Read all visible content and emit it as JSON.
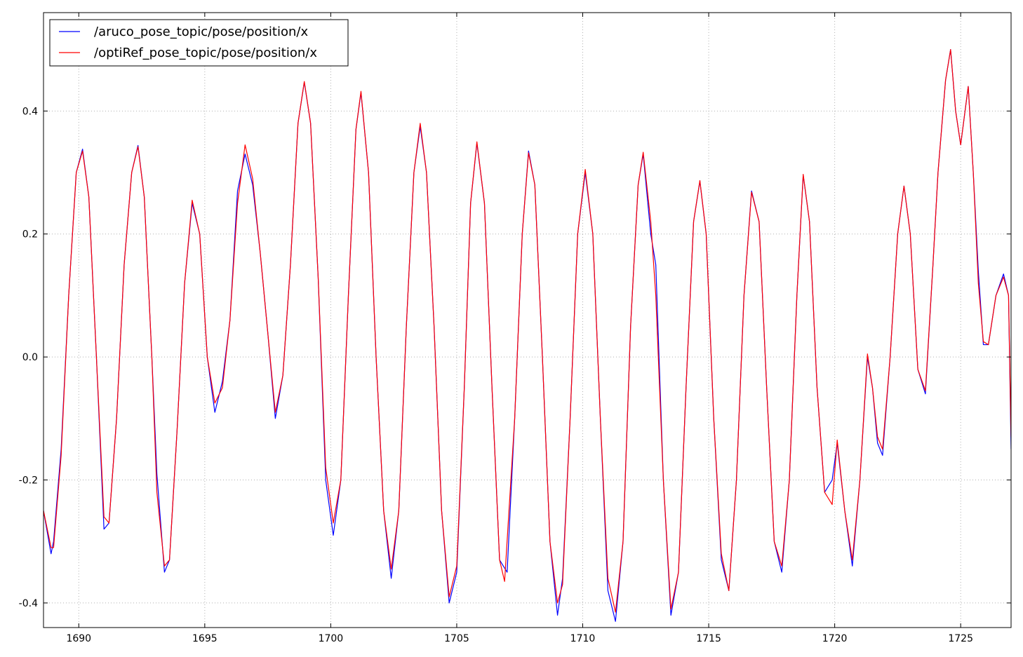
{
  "chart_data": {
    "type": "line",
    "title": "",
    "xlabel": "",
    "ylabel": "",
    "xlim": [
      1688.6,
      1727.0
    ],
    "ylim": [
      -0.44,
      0.56
    ],
    "xticks": [
      1690,
      1695,
      1700,
      1705,
      1710,
      1715,
      1720,
      1725
    ],
    "yticks": [
      -0.4,
      -0.2,
      0.0,
      0.2,
      0.4
    ],
    "grid": true,
    "legend_position": "top-left",
    "series": [
      {
        "name": "/aruco_pose_topic/pose/position/x",
        "color": "#0000ff",
        "points": [
          [
            1688.6,
            -0.25
          ],
          [
            1688.9,
            -0.32
          ],
          [
            1689.0,
            -0.3
          ],
          [
            1689.3,
            -0.15
          ],
          [
            1689.6,
            0.1
          ],
          [
            1689.9,
            0.3
          ],
          [
            1690.15,
            0.338
          ],
          [
            1690.4,
            0.26
          ],
          [
            1690.7,
            0.0
          ],
          [
            1691.0,
            -0.28
          ],
          [
            1691.2,
            -0.27
          ],
          [
            1691.5,
            -0.1
          ],
          [
            1691.8,
            0.15
          ],
          [
            1692.1,
            0.3
          ],
          [
            1692.35,
            0.344
          ],
          [
            1692.6,
            0.26
          ],
          [
            1692.9,
            0.0
          ],
          [
            1693.1,
            -0.19
          ],
          [
            1693.4,
            -0.35
          ],
          [
            1693.6,
            -0.33
          ],
          [
            1693.9,
            -0.12
          ],
          [
            1694.2,
            0.12
          ],
          [
            1694.5,
            0.25
          ],
          [
            1694.8,
            0.2
          ],
          [
            1695.1,
            0.0
          ],
          [
            1695.4,
            -0.09
          ],
          [
            1695.7,
            -0.04
          ],
          [
            1696.0,
            0.06
          ],
          [
            1696.3,
            0.27
          ],
          [
            1696.6,
            0.33
          ],
          [
            1696.9,
            0.28
          ],
          [
            1697.2,
            0.17
          ],
          [
            1697.5,
            0.04
          ],
          [
            1697.8,
            -0.1
          ],
          [
            1698.1,
            -0.03
          ],
          [
            1698.4,
            0.15
          ],
          [
            1698.7,
            0.38
          ],
          [
            1698.95,
            0.447
          ],
          [
            1699.2,
            0.38
          ],
          [
            1699.5,
            0.13
          ],
          [
            1699.8,
            -0.2
          ],
          [
            1700.1,
            -0.29
          ],
          [
            1700.4,
            -0.2
          ],
          [
            1700.7,
            0.1
          ],
          [
            1701.0,
            0.37
          ],
          [
            1701.2,
            0.43
          ],
          [
            1701.5,
            0.3
          ],
          [
            1701.8,
            0.0
          ],
          [
            1702.1,
            -0.25
          ],
          [
            1702.4,
            -0.36
          ],
          [
            1702.7,
            -0.25
          ],
          [
            1703.0,
            0.05
          ],
          [
            1703.3,
            0.3
          ],
          [
            1703.55,
            0.375
          ],
          [
            1703.8,
            0.3
          ],
          [
            1704.1,
            0.05
          ],
          [
            1704.4,
            -0.25
          ],
          [
            1704.7,
            -0.4
          ],
          [
            1705.0,
            -0.35
          ],
          [
            1705.3,
            -0.05
          ],
          [
            1705.55,
            0.25
          ],
          [
            1705.8,
            0.348
          ],
          [
            1706.1,
            0.25
          ],
          [
            1706.4,
            -0.05
          ],
          [
            1706.7,
            -0.33
          ],
          [
            1707.0,
            -0.35
          ],
          [
            1707.3,
            -0.1
          ],
          [
            1707.6,
            0.2
          ],
          [
            1707.85,
            0.335
          ],
          [
            1708.1,
            0.28
          ],
          [
            1708.4,
            0.0
          ],
          [
            1708.7,
            -0.3
          ],
          [
            1709.0,
            -0.42
          ],
          [
            1709.2,
            -0.36
          ],
          [
            1709.5,
            -0.1
          ],
          [
            1709.8,
            0.2
          ],
          [
            1710.1,
            0.3
          ],
          [
            1710.4,
            0.2
          ],
          [
            1710.7,
            -0.1
          ],
          [
            1711.0,
            -0.38
          ],
          [
            1711.3,
            -0.43
          ],
          [
            1711.6,
            -0.3
          ],
          [
            1711.9,
            0.05
          ],
          [
            1712.2,
            0.28
          ],
          [
            1712.4,
            0.33
          ],
          [
            1712.7,
            0.2
          ],
          [
            1712.9,
            0.15
          ],
          [
            1713.2,
            -0.2
          ],
          [
            1713.5,
            -0.42
          ],
          [
            1713.8,
            -0.35
          ],
          [
            1714.1,
            -0.05
          ],
          [
            1714.4,
            0.22
          ],
          [
            1714.65,
            0.286
          ],
          [
            1714.9,
            0.2
          ],
          [
            1715.2,
            -0.1
          ],
          [
            1715.5,
            -0.33
          ],
          [
            1715.8,
            -0.38
          ],
          [
            1716.1,
            -0.2
          ],
          [
            1716.4,
            0.1
          ],
          [
            1716.7,
            0.27
          ],
          [
            1717.0,
            0.22
          ],
          [
            1717.3,
            -0.05
          ],
          [
            1717.6,
            -0.3
          ],
          [
            1717.9,
            -0.35
          ],
          [
            1718.2,
            -0.2
          ],
          [
            1718.5,
            0.1
          ],
          [
            1718.75,
            0.296
          ],
          [
            1719.0,
            0.22
          ],
          [
            1719.3,
            -0.05
          ],
          [
            1719.6,
            -0.22
          ],
          [
            1719.9,
            -0.2
          ],
          [
            1720.1,
            -0.14
          ],
          [
            1720.4,
            -0.25
          ],
          [
            1720.7,
            -0.34
          ],
          [
            1721.0,
            -0.2
          ],
          [
            1721.3,
            0.0
          ],
          [
            1721.5,
            -0.05
          ],
          [
            1721.7,
            -0.14
          ],
          [
            1721.9,
            -0.16
          ],
          [
            1722.2,
            0.0
          ],
          [
            1722.5,
            0.2
          ],
          [
            1722.75,
            0.278
          ],
          [
            1723.0,
            0.2
          ],
          [
            1723.3,
            -0.02
          ],
          [
            1723.6,
            -0.06
          ],
          [
            1723.9,
            0.15
          ],
          [
            1724.1,
            0.3
          ],
          [
            1724.4,
            0.45
          ],
          [
            1724.6,
            0.5
          ],
          [
            1724.8,
            0.4
          ],
          [
            1725.0,
            0.345
          ],
          [
            1725.3,
            0.44
          ],
          [
            1725.5,
            0.3
          ],
          [
            1725.7,
            0.14
          ],
          [
            1725.9,
            0.02
          ],
          [
            1726.1,
            0.02
          ],
          [
            1726.4,
            0.1
          ],
          [
            1726.7,
            0.135
          ],
          [
            1726.9,
            0.1
          ],
          [
            1727.0,
            -0.15
          ]
        ]
      },
      {
        "name": "/optiRef_pose_topic/pose/position/x",
        "color": "#ff0000",
        "points": [
          [
            1688.6,
            -0.25
          ],
          [
            1688.9,
            -0.31
          ],
          [
            1689.0,
            -0.31
          ],
          [
            1689.3,
            -0.16
          ],
          [
            1689.6,
            0.1
          ],
          [
            1689.9,
            0.3
          ],
          [
            1690.15,
            0.335
          ],
          [
            1690.4,
            0.26
          ],
          [
            1690.7,
            0.0
          ],
          [
            1691.0,
            -0.26
          ],
          [
            1691.2,
            -0.27
          ],
          [
            1691.5,
            -0.1
          ],
          [
            1691.8,
            0.15
          ],
          [
            1692.1,
            0.3
          ],
          [
            1692.35,
            0.342
          ],
          [
            1692.6,
            0.26
          ],
          [
            1692.9,
            0.0
          ],
          [
            1693.1,
            -0.22
          ],
          [
            1693.4,
            -0.34
          ],
          [
            1693.6,
            -0.33
          ],
          [
            1693.9,
            -0.12
          ],
          [
            1694.2,
            0.12
          ],
          [
            1694.5,
            0.255
          ],
          [
            1694.8,
            0.2
          ],
          [
            1695.1,
            0.0
          ],
          [
            1695.4,
            -0.075
          ],
          [
            1695.7,
            -0.05
          ],
          [
            1696.0,
            0.06
          ],
          [
            1696.3,
            0.25
          ],
          [
            1696.6,
            0.345
          ],
          [
            1696.9,
            0.29
          ],
          [
            1697.2,
            0.17
          ],
          [
            1697.5,
            0.04
          ],
          [
            1697.8,
            -0.09
          ],
          [
            1698.1,
            -0.03
          ],
          [
            1698.4,
            0.15
          ],
          [
            1698.7,
            0.38
          ],
          [
            1698.95,
            0.448
          ],
          [
            1699.2,
            0.38
          ],
          [
            1699.5,
            0.13
          ],
          [
            1699.8,
            -0.18
          ],
          [
            1700.1,
            -0.27
          ],
          [
            1700.4,
            -0.2
          ],
          [
            1700.7,
            0.1
          ],
          [
            1701.0,
            0.37
          ],
          [
            1701.2,
            0.432
          ],
          [
            1701.5,
            0.3
          ],
          [
            1701.8,
            0.0
          ],
          [
            1702.1,
            -0.25
          ],
          [
            1702.4,
            -0.345
          ],
          [
            1702.7,
            -0.25
          ],
          [
            1703.0,
            0.05
          ],
          [
            1703.3,
            0.3
          ],
          [
            1703.55,
            0.38
          ],
          [
            1703.8,
            0.3
          ],
          [
            1704.1,
            0.05
          ],
          [
            1704.4,
            -0.25
          ],
          [
            1704.7,
            -0.39
          ],
          [
            1705.0,
            -0.34
          ],
          [
            1705.3,
            -0.05
          ],
          [
            1705.55,
            0.25
          ],
          [
            1705.8,
            0.35
          ],
          [
            1706.1,
            0.25
          ],
          [
            1706.4,
            -0.05
          ],
          [
            1706.7,
            -0.33
          ],
          [
            1706.9,
            -0.365
          ],
          [
            1707.3,
            -0.1
          ],
          [
            1707.6,
            0.2
          ],
          [
            1707.85,
            0.332
          ],
          [
            1708.1,
            0.28
          ],
          [
            1708.4,
            0.0
          ],
          [
            1708.7,
            -0.3
          ],
          [
            1709.0,
            -0.4
          ],
          [
            1709.2,
            -0.37
          ],
          [
            1709.5,
            -0.1
          ],
          [
            1709.8,
            0.2
          ],
          [
            1710.1,
            0.305
          ],
          [
            1710.4,
            0.2
          ],
          [
            1710.7,
            -0.1
          ],
          [
            1711.0,
            -0.36
          ],
          [
            1711.3,
            -0.415
          ],
          [
            1711.6,
            -0.3
          ],
          [
            1711.9,
            0.05
          ],
          [
            1712.2,
            0.28
          ],
          [
            1712.4,
            0.333
          ],
          [
            1712.7,
            0.22
          ],
          [
            1712.9,
            0.1
          ],
          [
            1713.2,
            -0.2
          ],
          [
            1713.5,
            -0.41
          ],
          [
            1713.8,
            -0.35
          ],
          [
            1714.1,
            -0.05
          ],
          [
            1714.4,
            0.22
          ],
          [
            1714.65,
            0.287
          ],
          [
            1714.9,
            0.2
          ],
          [
            1715.2,
            -0.1
          ],
          [
            1715.5,
            -0.32
          ],
          [
            1715.8,
            -0.38
          ],
          [
            1716.1,
            -0.2
          ],
          [
            1716.4,
            0.1
          ],
          [
            1716.7,
            0.268
          ],
          [
            1717.0,
            0.22
          ],
          [
            1717.3,
            -0.05
          ],
          [
            1717.6,
            -0.3
          ],
          [
            1717.9,
            -0.34
          ],
          [
            1718.2,
            -0.2
          ],
          [
            1718.5,
            0.1
          ],
          [
            1718.75,
            0.297
          ],
          [
            1719.0,
            0.22
          ],
          [
            1719.3,
            -0.05
          ],
          [
            1719.6,
            -0.22
          ],
          [
            1719.9,
            -0.24
          ],
          [
            1720.1,
            -0.135
          ],
          [
            1720.4,
            -0.25
          ],
          [
            1720.7,
            -0.33
          ],
          [
            1721.0,
            -0.2
          ],
          [
            1721.3,
            0.005
          ],
          [
            1721.5,
            -0.05
          ],
          [
            1721.7,
            -0.13
          ],
          [
            1721.9,
            -0.15
          ],
          [
            1722.2,
            0.0
          ],
          [
            1722.5,
            0.2
          ],
          [
            1722.75,
            0.278
          ],
          [
            1723.0,
            0.2
          ],
          [
            1723.3,
            -0.02
          ],
          [
            1723.6,
            -0.055
          ],
          [
            1723.9,
            0.15
          ],
          [
            1724.1,
            0.3
          ],
          [
            1724.4,
            0.45
          ],
          [
            1724.6,
            0.5
          ],
          [
            1724.8,
            0.4
          ],
          [
            1725.0,
            0.345
          ],
          [
            1725.3,
            0.44
          ],
          [
            1725.5,
            0.3
          ],
          [
            1725.7,
            0.12
          ],
          [
            1725.9,
            0.025
          ],
          [
            1726.1,
            0.02
          ],
          [
            1726.4,
            0.1
          ],
          [
            1726.7,
            0.13
          ],
          [
            1726.9,
            0.1
          ],
          [
            1727.0,
            -0.13
          ]
        ]
      }
    ]
  }
}
